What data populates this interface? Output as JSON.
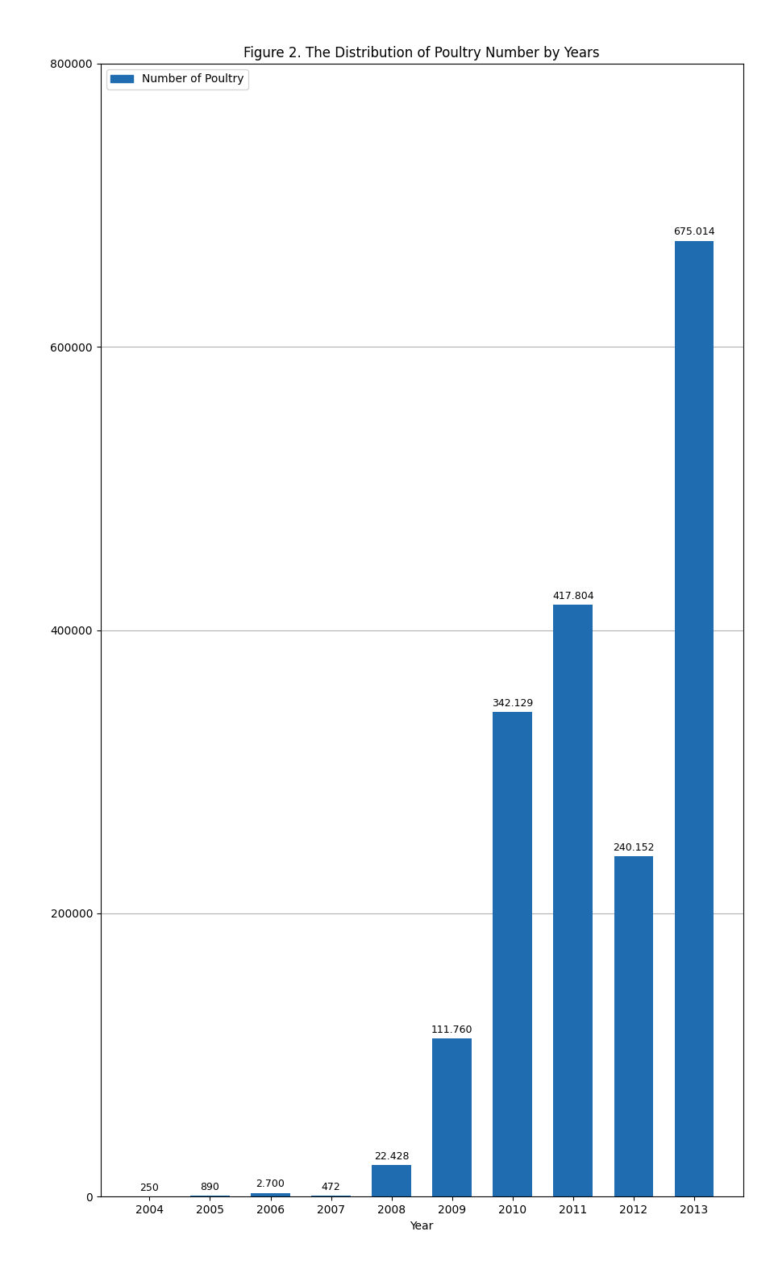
{
  "chart_data": {
    "type": "bar",
    "title": "Figure 2. The Distribution of Poultry Number by Years",
    "x_label": "Year",
    "categories": [
      "2004",
      "2005",
      "2006",
      "2007",
      "2008",
      "2009",
      "2010",
      "2011",
      "2012",
      "2013"
    ],
    "series": [
      {
        "name": "Number of Poultry",
        "color": "#1F6CB0",
        "values": [
          250,
          890,
          2700,
          472,
          22428,
          111760,
          342129,
          417804,
          240152,
          675014
        ],
        "value_labels": [
          "250",
          "890",
          "2.700",
          "472",
          "22.428",
          "111.760",
          "342.129",
          "417.804",
          "240.152",
          "675.014"
        ]
      }
    ],
    "ylim": [
      0,
      800000
    ],
    "yticks": [
      0,
      200000,
      400000,
      600000,
      800000
    ],
    "grid": true,
    "legend": "upper left",
    "data_labels": true
  }
}
